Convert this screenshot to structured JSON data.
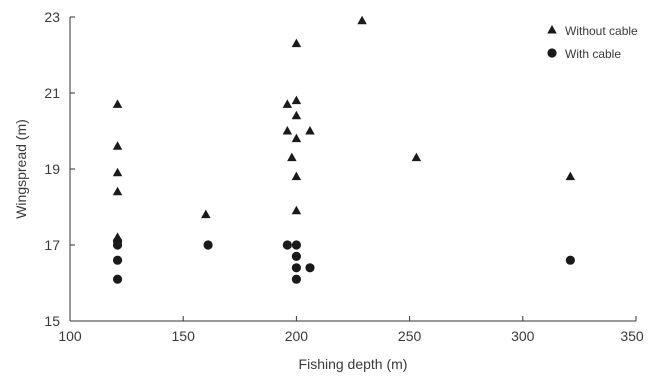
{
  "chart_data": {
    "type": "scatter",
    "title": "",
    "xlabel": "Fishing depth (m)",
    "ylabel": "Wingspread (m)",
    "xlim": [
      100,
      350
    ],
    "ylim": [
      15,
      23
    ],
    "x_ticks": [
      "100",
      "150",
      "200",
      "250",
      "300",
      "350"
    ],
    "y_ticks": [
      "15",
      "17",
      "19",
      "21",
      "23"
    ],
    "legend": {
      "placement": "top-right",
      "entries": [
        "Without cable",
        "With cable"
      ]
    },
    "grid": false,
    "series": [
      {
        "name": "Without cable",
        "marker": "triangle",
        "color": "#1a1a1a",
        "points": [
          {
            "x": 121,
            "y": 20.7
          },
          {
            "x": 121,
            "y": 19.6
          },
          {
            "x": 121,
            "y": 18.9
          },
          {
            "x": 121,
            "y": 18.4
          },
          {
            "x": 121,
            "y": 17.2
          },
          {
            "x": 160,
            "y": 17.8
          },
          {
            "x": 196,
            "y": 20.7
          },
          {
            "x": 200,
            "y": 20.8
          },
          {
            "x": 200,
            "y": 20.4
          },
          {
            "x": 196,
            "y": 20.0
          },
          {
            "x": 206,
            "y": 20.0
          },
          {
            "x": 200,
            "y": 19.8
          },
          {
            "x": 198,
            "y": 19.3
          },
          {
            "x": 200,
            "y": 18.8
          },
          {
            "x": 200,
            "y": 17.9
          },
          {
            "x": 200,
            "y": 22.3
          },
          {
            "x": 229,
            "y": 22.9
          },
          {
            "x": 253,
            "y": 19.3
          },
          {
            "x": 321,
            "y": 18.8
          }
        ]
      },
      {
        "name": "With cable",
        "marker": "circle",
        "color": "#1a1a1a",
        "points": [
          {
            "x": 121,
            "y": 17.1
          },
          {
            "x": 121,
            "y": 17.0
          },
          {
            "x": 121,
            "y": 16.6
          },
          {
            "x": 121,
            "y": 16.1
          },
          {
            "x": 161,
            "y": 17.0
          },
          {
            "x": 196,
            "y": 17.0
          },
          {
            "x": 200,
            "y": 17.0
          },
          {
            "x": 200,
            "y": 16.7
          },
          {
            "x": 200,
            "y": 16.4
          },
          {
            "x": 200,
            "y": 16.1
          },
          {
            "x": 206,
            "y": 16.4
          },
          {
            "x": 321,
            "y": 16.6
          }
        ]
      }
    ]
  }
}
